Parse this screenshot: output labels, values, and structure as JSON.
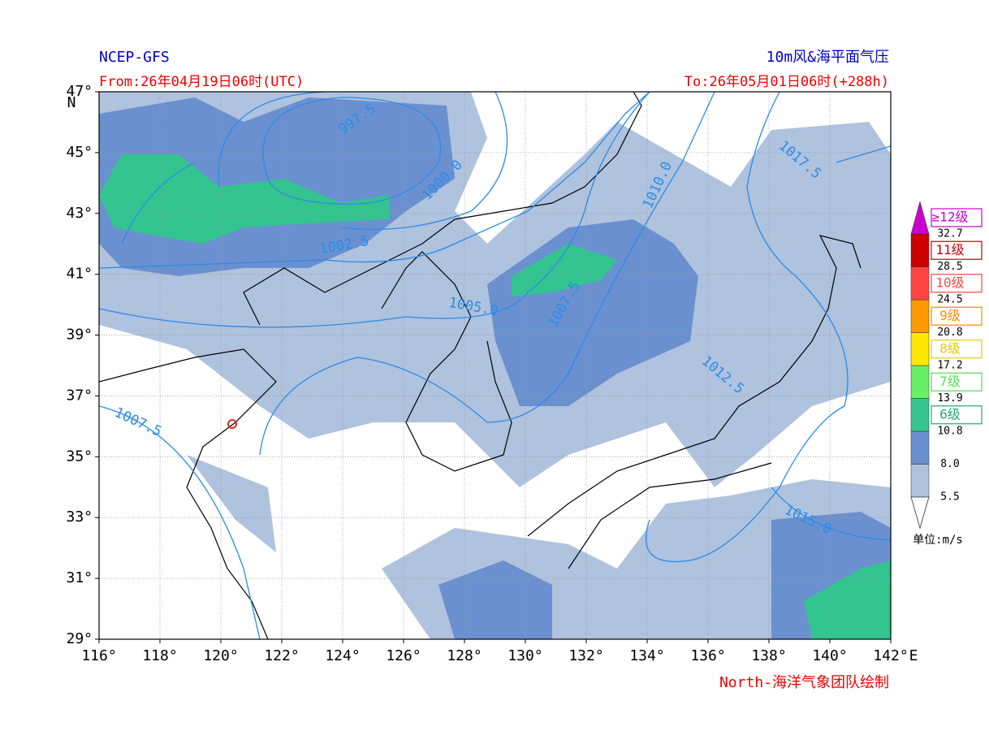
{
  "header": {
    "source": "NCEP-GFS",
    "product": "10m风&海平面气压",
    "from": "From:26年04月19日06时(UTC)",
    "to": "To:26年05月01日06时(+288h)"
  },
  "map": {
    "xlim": [
      116,
      142
    ],
    "ylim": [
      29,
      47
    ],
    "xticks": [
      {
        "value": 116,
        "label": "116°"
      },
      {
        "value": 118,
        "label": "118°"
      },
      {
        "value": 120,
        "label": "120°"
      },
      {
        "value": 122,
        "label": "122°"
      },
      {
        "value": 124,
        "label": "124°"
      },
      {
        "value": 126,
        "label": "126°"
      },
      {
        "value": 128,
        "label": "128°"
      },
      {
        "value": 130,
        "label": "130°"
      },
      {
        "value": 132,
        "label": "132°"
      },
      {
        "value": 134,
        "label": "134°"
      },
      {
        "value": 136,
        "label": "136°"
      },
      {
        "value": 138,
        "label": "138°"
      },
      {
        "value": 140,
        "label": "140°"
      },
      {
        "value": 142,
        "label": "142°"
      }
    ],
    "x_unit": "E",
    "yticks": [
      {
        "value": 29,
        "label": "29°"
      },
      {
        "value": 31,
        "label": "31°"
      },
      {
        "value": 33,
        "label": "33°"
      },
      {
        "value": 35,
        "label": "35°"
      },
      {
        "value": 37,
        "label": "37°"
      },
      {
        "value": 39,
        "label": "39°"
      },
      {
        "value": 41,
        "label": "41°"
      },
      {
        "value": 43,
        "label": "43°"
      },
      {
        "value": 45,
        "label": "45°"
      },
      {
        "value": 47,
        "label": "47°"
      }
    ],
    "y_unit": "N",
    "contour_labels": [
      "997.5",
      "1000.0",
      "1002.5",
      "1005.0",
      "1007.5",
      "1007.5",
      "1010.0",
      "1012.5",
      "1015.0",
      "1017.5"
    ]
  },
  "colorbar": {
    "levels": [
      5.5,
      {
        "value": 8,
        "label": "8.0"
      },
      10.8,
      13.9,
      17.2,
      20.8,
      24.5,
      28.5,
      32.7
    ],
    "colors": [
      "#afc2de",
      "#6b90cf",
      "#33c490",
      "#66f066",
      "#ffe600",
      "#ff9900",
      "#ff4444",
      "#cc0000",
      "#cc00cc"
    ],
    "classes": [
      "6级",
      "7级",
      "8级",
      "9级",
      "10级",
      "11级",
      "≥12级"
    ],
    "class_colors": [
      "#22aa77",
      "#55dd55",
      "#e6cc00",
      "#ff8800",
      "#ff4444",
      "#cc0000",
      "#cc00cc"
    ],
    "unit": "单位:m/s"
  },
  "footer": "North-海洋气象团队绘制"
}
